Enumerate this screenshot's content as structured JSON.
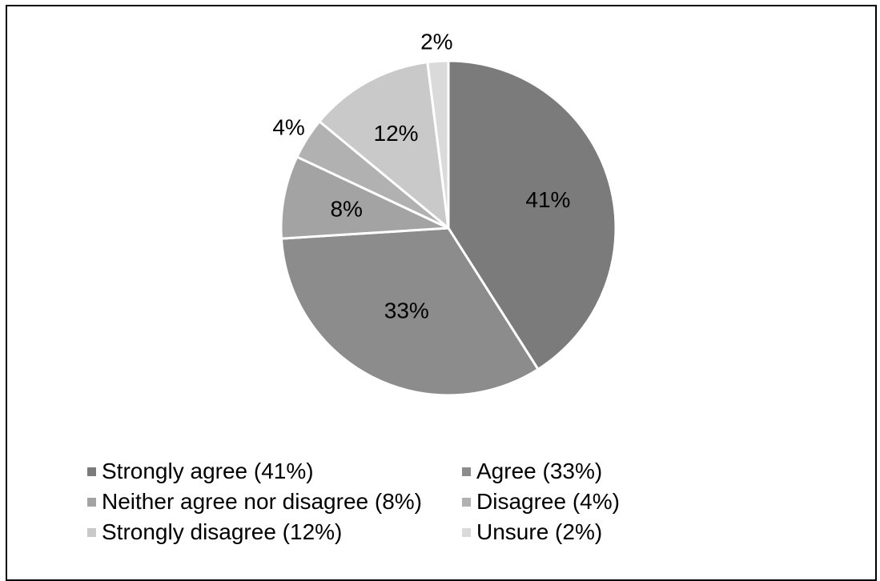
{
  "chart_data": {
    "type": "pie",
    "title": "",
    "start_angle_deg": 0,
    "direction": "clockwise",
    "slices": [
      {
        "label": "41%",
        "value": 41,
        "color": "#7b7b7b",
        "legend": "Strongly agree (41%)"
      },
      {
        "label": "33%",
        "value": 33,
        "color": "#8c8c8c",
        "legend": "Agree (33%)"
      },
      {
        "label": "8%",
        "value": 8,
        "color": "#a3a3a3",
        "legend": "Neither agree nor disagree (8%)"
      },
      {
        "label": "4%",
        "value": 4,
        "color": "#b1b1b1",
        "legend": "Disagree (4%)"
      },
      {
        "label": "12%",
        "value": 12,
        "color": "#c9c9c9",
        "legend": "Strongly disagree (12%)"
      },
      {
        "label": "2%",
        "value": 2,
        "color": "#dadada",
        "legend": "Unsure (2%)"
      }
    ],
    "legend_position": "bottom"
  }
}
